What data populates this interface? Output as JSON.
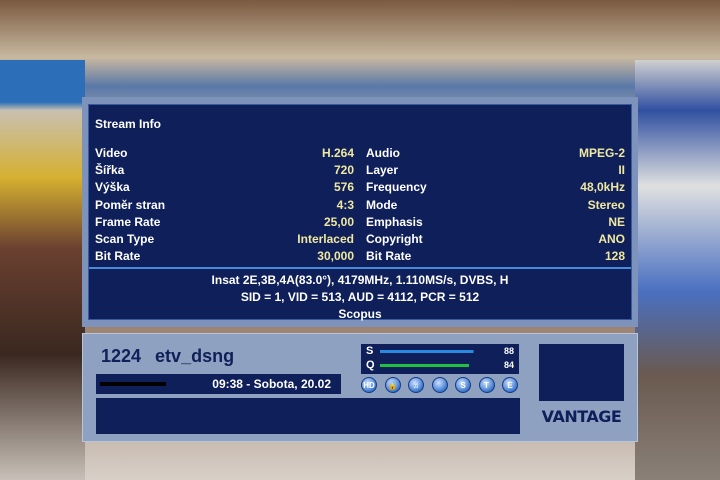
{
  "stream_info": {
    "title": "Stream Info",
    "video": [
      [
        "Video",
        "H.264"
      ],
      [
        "Šířka",
        "720"
      ],
      [
        "Výška",
        "576"
      ],
      [
        "Poměr stran",
        "4:3"
      ],
      [
        "Frame Rate",
        "25,00"
      ],
      [
        "Scan Type",
        "Interlaced"
      ],
      [
        "Bit Rate",
        "30,000"
      ]
    ],
    "audio": [
      [
        "Audio",
        "MPEG-2"
      ],
      [
        "Layer",
        "II"
      ],
      [
        "Frequency",
        "48,0kHz"
      ],
      [
        "Mode",
        "Stereo"
      ],
      [
        "Emphasis",
        "NE"
      ],
      [
        "Copyright",
        "ANO"
      ],
      [
        "Bit Rate",
        "128"
      ]
    ],
    "transponder": "Insat 2E,3B,4A(83.0°), 4179MHz, 1.110MS/s, DVBS, H",
    "pids": "SID = 1, VID = 513, AUD = 4112, PCR = 512",
    "provider": "Scopus"
  },
  "channel": {
    "number": "1224",
    "name": "etv_dsng",
    "datetime": "09:38 - Sobota, 20.02",
    "progress": 0.27
  },
  "signal": {
    "s_label": "S",
    "s_value": "88",
    "q_label": "Q",
    "q_value": "84",
    "s_color": "#2a8ae0",
    "q_color": "#20c040"
  },
  "icons": [
    {
      "name": "hd-icon",
      "text": "HD"
    },
    {
      "name": "lock-icon",
      "text": "🔒"
    },
    {
      "name": "music-icon",
      "text": "♫"
    },
    {
      "name": "blank-icon",
      "text": ""
    },
    {
      "name": "subtitle-icon",
      "text": "S"
    },
    {
      "name": "teletext-icon",
      "text": "T"
    },
    {
      "name": "epg-icon",
      "text": "E"
    }
  ],
  "brand": "VANTAGE"
}
